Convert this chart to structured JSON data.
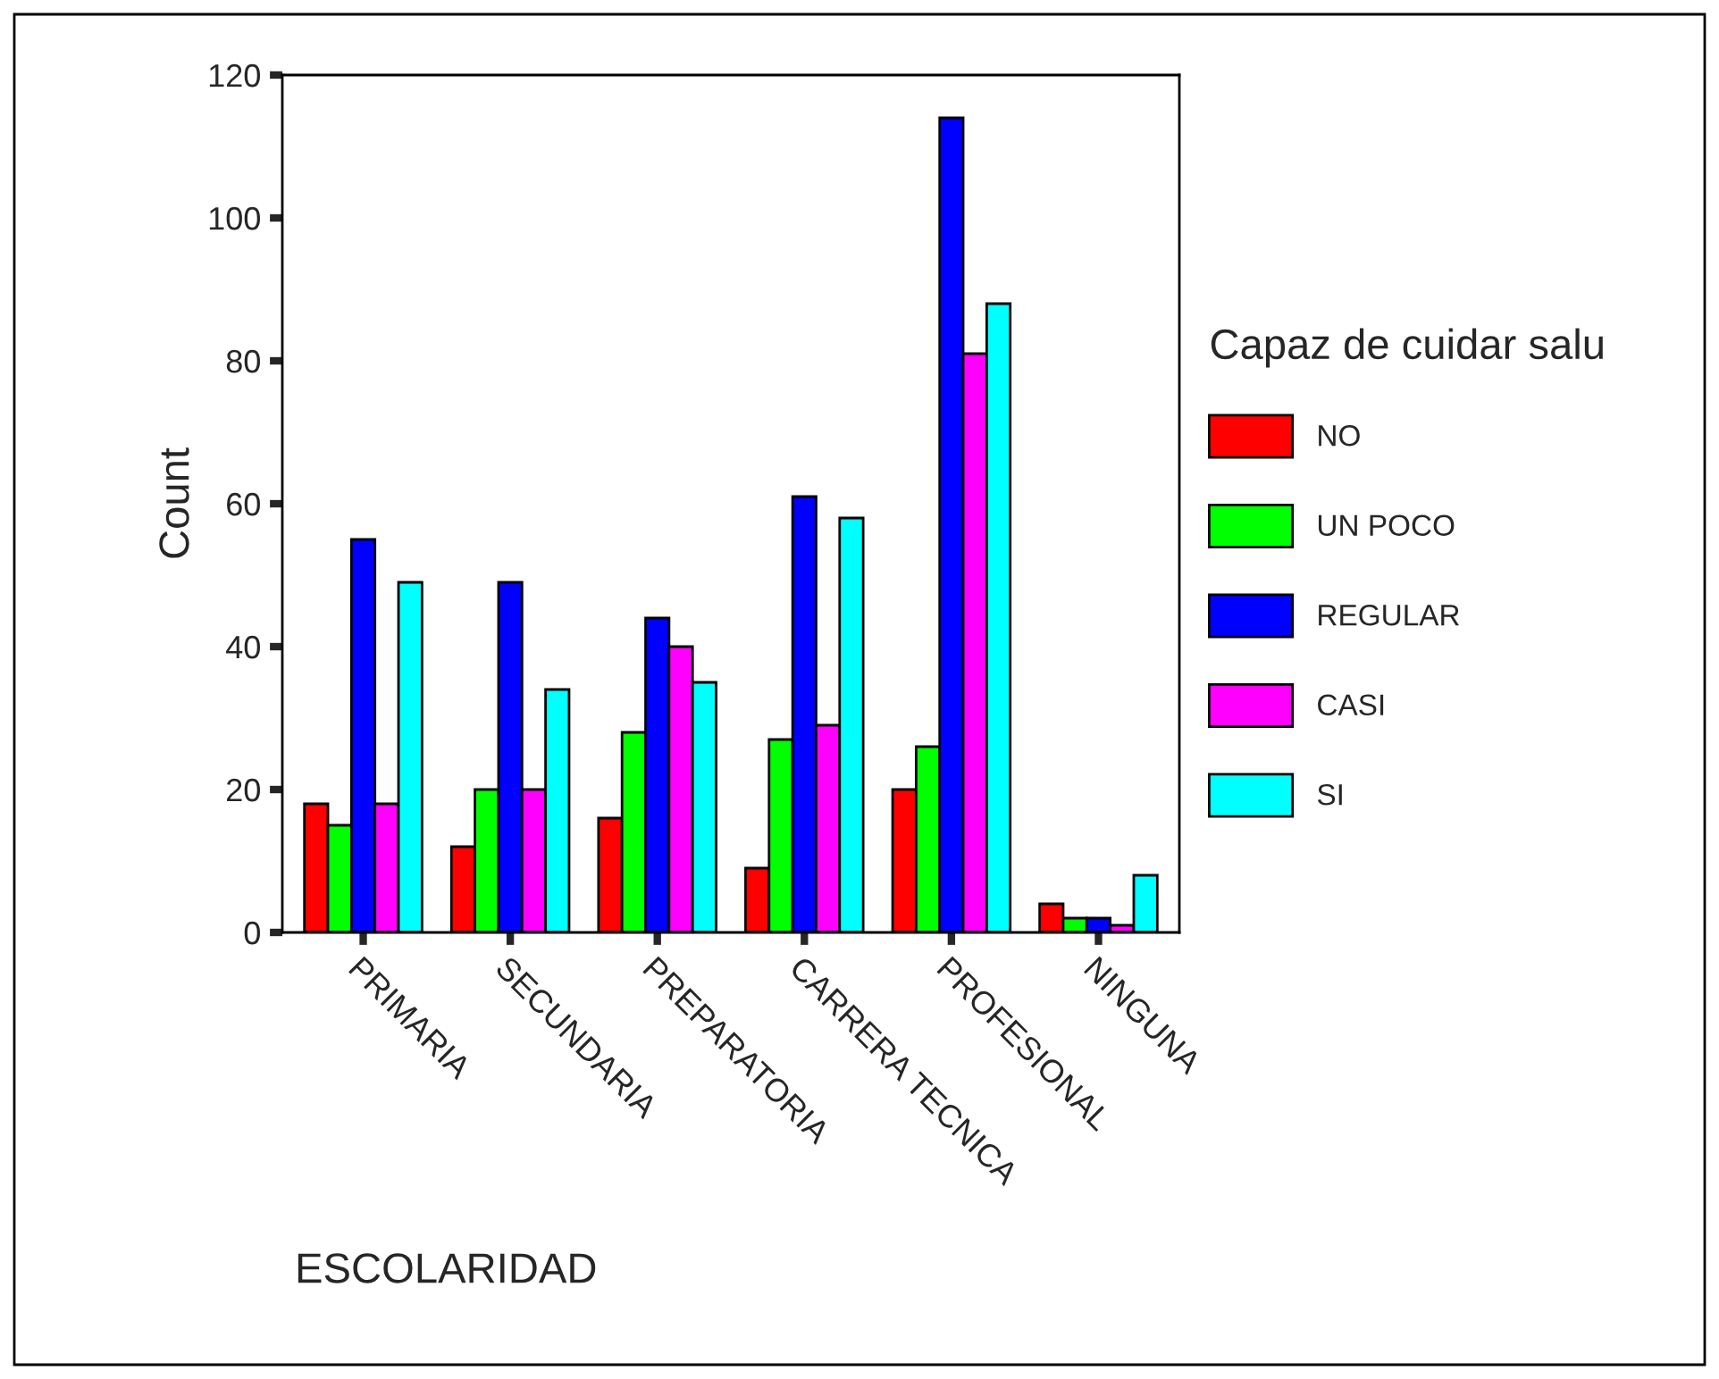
{
  "chart_data": {
    "type": "bar",
    "xlabel": "ESCOLARIDAD",
    "ylabel": "Count",
    "legend_title": "Capaz de cuidar salu",
    "legend": "right",
    "categories": [
      "PRIMARIA",
      "SECUNDARIA",
      "PREPARATORIA",
      "CARRERA TECNICA",
      "PROFESIONAL",
      "NINGUNA"
    ],
    "series": [
      {
        "name": "NO",
        "color": "#ff0000",
        "values": [
          18,
          12,
          16,
          9,
          20,
          4
        ]
      },
      {
        "name": "UN POCO",
        "color": "#00ff00",
        "values": [
          15,
          20,
          28,
          27,
          26,
          2
        ]
      },
      {
        "name": "REGULAR",
        "color": "#0000ff",
        "values": [
          55,
          49,
          44,
          61,
          114,
          2
        ]
      },
      {
        "name": "CASI",
        "color": "#ff00ff",
        "values": [
          18,
          20,
          40,
          29,
          81,
          1
        ]
      },
      {
        "name": "SI",
        "color": "#00ffff",
        "values": [
          49,
          34,
          35,
          58,
          88,
          8
        ]
      }
    ],
    "ylim": [
      0,
      120
    ],
    "yticks": [
      0,
      20,
      40,
      60,
      80,
      100,
      120
    ],
    "grid": false
  }
}
